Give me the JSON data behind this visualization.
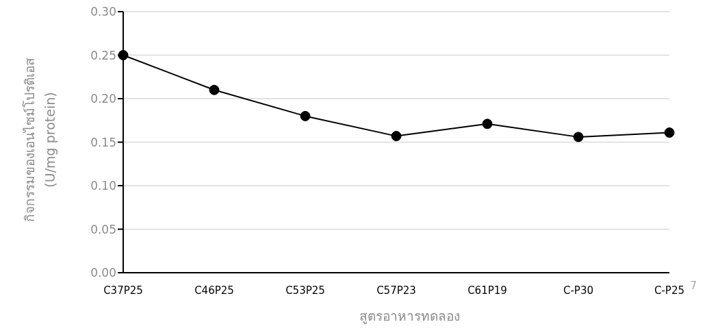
{
  "chart_data": {
    "type": "line",
    "xlabel": "สูตรอาหารทดลอง",
    "ylabel": "กิจกรรมของเอนไซม์โปรติเอส\n(U/mg protein)",
    "categories": [
      "C37P25",
      "C46P25",
      "C53P25",
      "C57P23",
      "C61P19",
      "C-P30",
      "C-P25"
    ],
    "series": [
      {
        "color": "#000000",
        "values": [
          0.25,
          0.21,
          0.18,
          0.157,
          0.171,
          0.156,
          0.161
        ]
      }
    ],
    "ylim": [
      0,
      0.3
    ],
    "yticks": [
      {
        "value": 0,
        "label": "0.00"
      },
      {
        "value": 0.05,
        "label": "0.05"
      },
      {
        "value": 0.1,
        "label": "0.10"
      },
      {
        "value": 0.15,
        "label": "0.15"
      },
      {
        "value": 0.2,
        "label": "0.20"
      },
      {
        "value": 0.25,
        "label": "0.25"
      },
      {
        "value": 0.3,
        "label": "0.30"
      }
    ],
    "grid": "y",
    "marker": "circle",
    "line_style": "solid",
    "legend": false,
    "annotations": [
      "7"
    ]
  }
}
